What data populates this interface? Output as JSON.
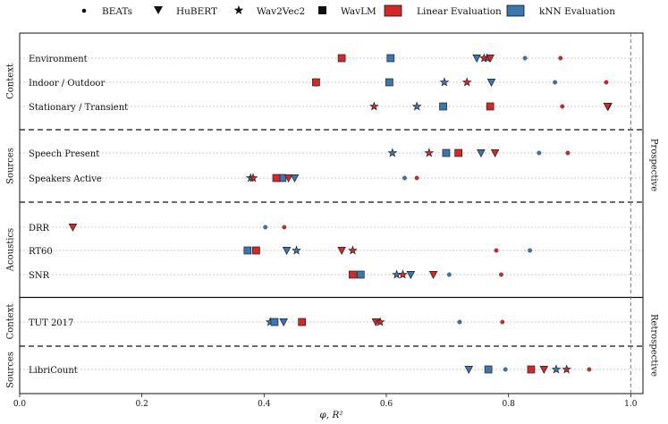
{
  "legend": {
    "items": [
      {
        "label": "BEATs",
        "marker": "circle"
      },
      {
        "label": "HuBERT",
        "marker": "triangle-down"
      },
      {
        "label": "Wav2Vec2",
        "marker": "star"
      },
      {
        "label": "WavLM",
        "marker": "square"
      },
      {
        "label": "Linear Evaluation",
        "marker": "patch",
        "color": "#d62728"
      },
      {
        "label": "kNN Evaluation",
        "marker": "patch",
        "color": "#3a77b0"
      }
    ]
  },
  "chart_data": {
    "type": "scatter",
    "xlabel": "φ, R²",
    "xlim": [
      0.0,
      1.02
    ],
    "xticks": [
      "0.0",
      "0.2",
      "0.4",
      "0.6",
      "0.8",
      "1.0"
    ],
    "reference_line_x": 1.0,
    "grid": "horizontal dotted per row",
    "colors": {
      "linear": "#d62728",
      "knn": "#3a77b0"
    },
    "models": [
      "BEATs",
      "HuBERT",
      "Wav2Vec2",
      "WavLM"
    ],
    "super_groups": [
      "Prospective",
      "Retrospective"
    ],
    "groups": [
      {
        "label": "Context",
        "super": "Prospective"
      },
      {
        "label": "Sources",
        "super": "Prospective"
      },
      {
        "label": "Acoustics",
        "super": "Prospective"
      },
      {
        "label": "Context",
        "super": "Retrospective"
      },
      {
        "label": "Sources",
        "super": "Retrospective"
      }
    ],
    "rows": [
      {
        "label": "Environment",
        "group": 0,
        "linear": {
          "BEATs": 0.885,
          "HuBERT": 0.77,
          "Wav2Vec2": 0.76,
          "WavLM": 0.527
        },
        "knn": {
          "BEATs": 0.827,
          "HuBERT": 0.748,
          "Wav2Vec2": 0.765,
          "WavLM": 0.607
        }
      },
      {
        "label": "Indoor / Outdoor",
        "group": 0,
        "linear": {
          "BEATs": 0.96,
          "HuBERT": 0.485,
          "Wav2Vec2": 0.732,
          "WavLM": 0.485
        },
        "knn": {
          "BEATs": 0.876,
          "HuBERT": 0.772,
          "Wav2Vec2": 0.695,
          "WavLM": 0.605
        }
      },
      {
        "label": "Stationary / Transient",
        "group": 0,
        "linear": {
          "BEATs": 0.888,
          "HuBERT": 0.962,
          "Wav2Vec2": 0.58,
          "WavLM": 0.77
        },
        "knn": {
          "BEATs": 0.963,
          "HuBERT": 0.963,
          "Wav2Vec2": 0.65,
          "WavLM": 0.693
        }
      },
      {
        "label": "Speech Present",
        "group": 1,
        "linear": {
          "BEATs": 0.897,
          "HuBERT": 0.778,
          "Wav2Vec2": 0.67,
          "WavLM": 0.718
        },
        "knn": {
          "BEATs": 0.85,
          "HuBERT": 0.755,
          "Wav2Vec2": 0.61,
          "WavLM": 0.698
        }
      },
      {
        "label": "Speakers Active",
        "group": 1,
        "linear": {
          "BEATs": 0.65,
          "HuBERT": 0.44,
          "Wav2Vec2": 0.382,
          "WavLM": 0.42
        },
        "knn": {
          "BEATs": 0.63,
          "HuBERT": 0.45,
          "Wav2Vec2": 0.378,
          "WavLM": 0.43
        }
      },
      {
        "label": "DRR",
        "group": 2,
        "linear": {
          "BEATs": 0.433,
          "HuBERT": 0.087,
          "Wav2Vec2": null,
          "WavLM": null
        },
        "knn": {
          "BEATs": 0.402,
          "HuBERT": null,
          "Wav2Vec2": null,
          "WavLM": null
        }
      },
      {
        "label": "RT60",
        "group": 2,
        "linear": {
          "BEATs": 0.78,
          "HuBERT": 0.527,
          "Wav2Vec2": 0.545,
          "WavLM": 0.387
        },
        "knn": {
          "BEATs": 0.835,
          "HuBERT": 0.437,
          "Wav2Vec2": 0.453,
          "WavLM": 0.373
        }
      },
      {
        "label": "SNR",
        "group": 2,
        "linear": {
          "BEATs": 0.788,
          "HuBERT": 0.677,
          "Wav2Vec2": 0.627,
          "WavLM": 0.545
        },
        "knn": {
          "BEATs": 0.703,
          "HuBERT": 0.64,
          "Wav2Vec2": 0.617,
          "WavLM": 0.558
        }
      },
      {
        "label": "TUT 2017",
        "group": 3,
        "linear": {
          "BEATs": 0.79,
          "HuBERT": 0.583,
          "Wav2Vec2": 0.59,
          "WavLM": 0.462
        },
        "knn": {
          "BEATs": 0.72,
          "HuBERT": 0.432,
          "Wav2Vec2": 0.41,
          "WavLM": 0.417
        }
      },
      {
        "label": "LibriCount",
        "group": 4,
        "linear": {
          "BEATs": 0.932,
          "HuBERT": 0.858,
          "Wav2Vec2": 0.895,
          "WavLM": 0.837
        },
        "knn": {
          "BEATs": 0.795,
          "HuBERT": 0.735,
          "Wav2Vec2": 0.878,
          "WavLM": 0.767
        }
      }
    ]
  }
}
